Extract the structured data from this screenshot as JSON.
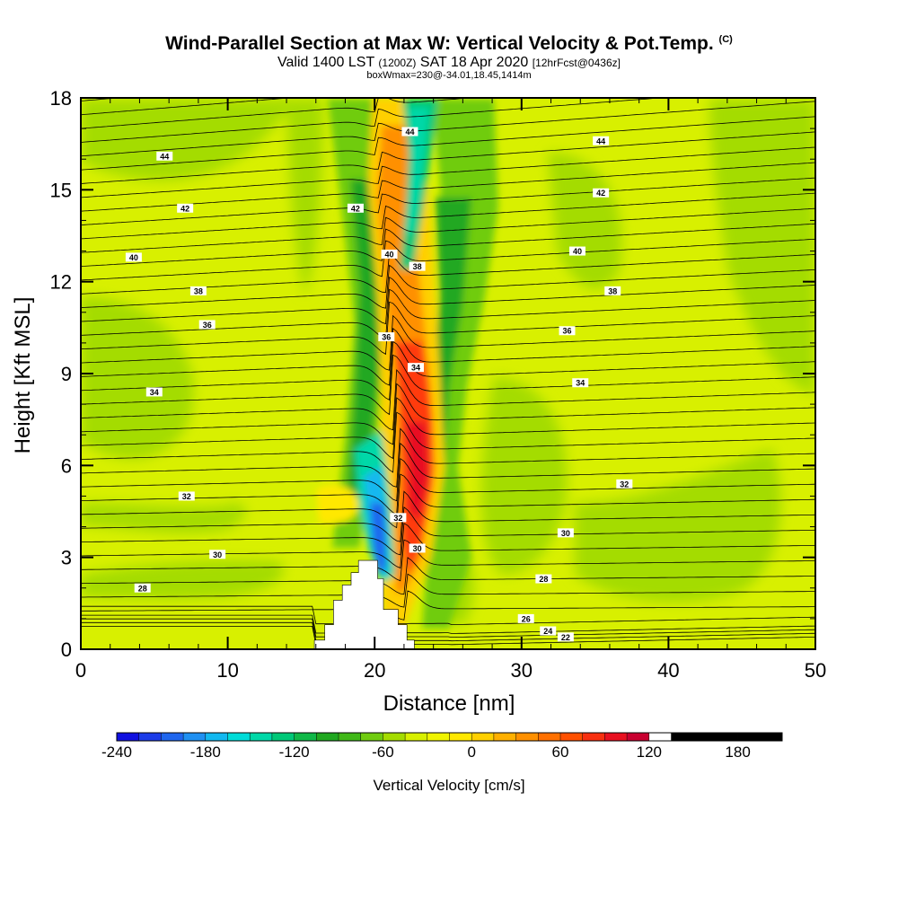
{
  "titles": {
    "main": "Wind-Parallel Section at Max W: Vertical Velocity & Pot.Temp.",
    "copyright": "(C)",
    "valid_main": "Valid 1400 LST",
    "valid_utc": "(1200Z)",
    "valid_date": "SAT 18 Apr 2020",
    "forecast": "[12hrFcst@0436z]",
    "box_info": "boxWmax=230@-34.01,18.45,1414m"
  },
  "chart_data": {
    "type": "heatmap",
    "xlabel": "Distance [nm]",
    "ylabel": "Height [Kft MSL]",
    "xlim": [
      0,
      50
    ],
    "ylim": [
      0,
      18
    ],
    "x_ticks": [
      0,
      10,
      20,
      30,
      40,
      50
    ],
    "y_ticks": [
      0,
      3,
      6,
      9,
      12,
      15,
      18
    ],
    "colorbar": {
      "label": "Vertical Velocity [cm/s]",
      "min": -240,
      "max": 210,
      "step": 15,
      "tick_values": [
        -240,
        -180,
        -120,
        -60,
        0,
        60,
        120,
        180
      ],
      "colors": [
        "#1010e0",
        "#1c3ce8",
        "#1f66ee",
        "#1f90f2",
        "#12b8f0",
        "#00dcd8",
        "#00d8a8",
        "#00c878",
        "#10b848",
        "#20a820",
        "#40b818",
        "#70cc10",
        "#a4dc00",
        "#d8f000",
        "#f0f400",
        "#ffe800",
        "#ffd000",
        "#ffb000",
        "#ff9000",
        "#ff7000",
        "#ff5000",
        "#f83010",
        "#e81020",
        "#c80030",
        "#ffffff"
      ]
    },
    "isentropes": [
      {
        "label": "22",
        "y0": 0.15,
        "lx": 33,
        "ly": 0.4
      },
      {
        "label": "24",
        "y0": 0.25,
        "lx": 31.8,
        "ly": 0.6
      },
      {
        "label": "26",
        "y0": 0.4,
        "lx": 30.3,
        "ly": 1.0
      },
      {
        "label": "28",
        "y0": 2.0,
        "lx": 4.2,
        "ly": 2.0
      },
      {
        "label": "28",
        "y0": 2.3,
        "lx": 31.5,
        "ly": 2.3
      },
      {
        "label": "30",
        "y0": 3.1,
        "lx": 9.3,
        "ly": 3.1
      },
      {
        "label": "30",
        "y0": 3.8,
        "lx": 33.0,
        "ly": 3.8
      },
      {
        "label": "30",
        "y0": 3.3,
        "lx": 22.9,
        "ly": 3.3
      },
      {
        "label": "32",
        "y0": 5.0,
        "lx": 7.2,
        "ly": 5.0
      },
      {
        "label": "32",
        "y0": 5.4,
        "lx": 37.0,
        "ly": 5.4
      },
      {
        "label": "32",
        "y0": 4.3,
        "lx": 21.6,
        "ly": 4.3
      },
      {
        "label": "34",
        "y0": 8.4,
        "lx": 5.0,
        "ly": 8.4
      },
      {
        "label": "34",
        "y0": 8.7,
        "lx": 34.0,
        "ly": 8.7
      },
      {
        "label": "34",
        "y0": 9.2,
        "lx": 22.8,
        "ly": 9.2
      },
      {
        "label": "36",
        "y0": 10.6,
        "lx": 8.6,
        "ly": 10.6
      },
      {
        "label": "36",
        "y0": 10.4,
        "lx": 33.1,
        "ly": 10.4
      },
      {
        "label": "36",
        "y0": 10.2,
        "lx": 20.8,
        "ly": 10.2
      },
      {
        "label": "38",
        "y0": 11.7,
        "lx": 8.0,
        "ly": 11.7
      },
      {
        "label": "38",
        "y0": 11.7,
        "lx": 36.2,
        "ly": 11.7
      },
      {
        "label": "38",
        "y0": 12.5,
        "lx": 22.9,
        "ly": 12.5
      },
      {
        "label": "40",
        "y0": 12.8,
        "lx": 3.6,
        "ly": 12.8
      },
      {
        "label": "40",
        "y0": 13.0,
        "lx": 33.8,
        "ly": 13.0
      },
      {
        "label": "40",
        "y0": 12.9,
        "lx": 21.0,
        "ly": 12.9
      },
      {
        "label": "42",
        "y0": 14.4,
        "lx": 7.1,
        "ly": 14.4
      },
      {
        "label": "42",
        "y0": 14.9,
        "lx": 35.4,
        "ly": 14.9
      },
      {
        "label": "42",
        "y0": 14.4,
        "lx": 18.7,
        "ly": 14.4
      },
      {
        "label": "44",
        "y0": 16.1,
        "lx": 5.7,
        "ly": 16.1
      },
      {
        "label": "44",
        "y0": 16.6,
        "lx": 35.4,
        "ly": 16.6
      },
      {
        "label": "44",
        "y0": 16.9,
        "lx": 22.4,
        "ly": 16.9
      }
    ],
    "terrain_profile": [
      [
        15.9,
        0
      ],
      [
        15.9,
        0.3
      ],
      [
        16.6,
        0.3
      ],
      [
        16.6,
        0.8
      ],
      [
        17.2,
        0.8
      ],
      [
        17.2,
        1.6
      ],
      [
        17.8,
        1.6
      ],
      [
        17.8,
        2.1
      ],
      [
        18.4,
        2.1
      ],
      [
        18.4,
        2.5
      ],
      [
        18.9,
        2.5
      ],
      [
        18.9,
        2.9
      ],
      [
        20.2,
        2.9
      ],
      [
        20.2,
        2.3
      ],
      [
        20.6,
        2.3
      ],
      [
        20.6,
        1.3
      ],
      [
        21.6,
        1.3
      ],
      [
        21.6,
        0.8
      ],
      [
        22.2,
        0.8
      ],
      [
        22.2,
        0.3
      ],
      [
        22.7,
        0.3
      ],
      [
        22.7,
        0
      ]
    ]
  }
}
